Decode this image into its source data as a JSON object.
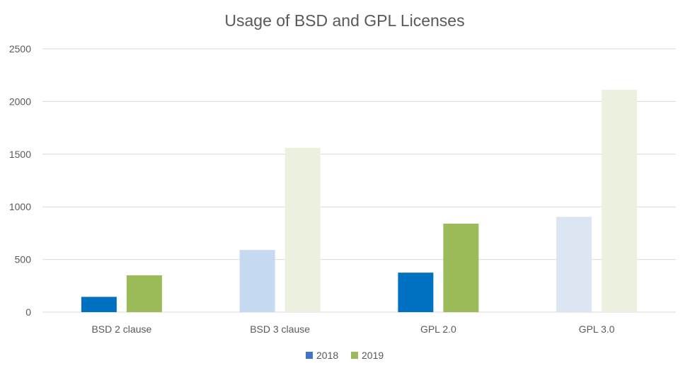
{
  "chart_data": {
    "type": "bar",
    "title": "Usage of BSD and GPL Licenses",
    "xlabel": "",
    "ylabel": "",
    "categories": [
      "BSD 2 clause",
      "BSD 3 clause",
      "GPL 2.0",
      "GPL 3.0"
    ],
    "series": [
      {
        "name": "2018",
        "values": [
          145,
          590,
          375,
          905
        ],
        "colors": [
          "#0070c0",
          "#c5d9f1",
          "#0070c0",
          "#dce6f2"
        ],
        "legend_color": "#4472c4"
      },
      {
        "name": "2019",
        "values": [
          350,
          1560,
          840,
          2110
        ],
        "colors": [
          "#9bbb59",
          "#ebf1de",
          "#9bbb59",
          "#ebf1de"
        ],
        "legend_color": "#9bbb59"
      }
    ],
    "ylim": [
      0,
      2500
    ],
    "yticks": [
      0,
      500,
      1000,
      1500,
      2000,
      2500
    ],
    "grid": true,
    "legend_position": "bottom"
  }
}
